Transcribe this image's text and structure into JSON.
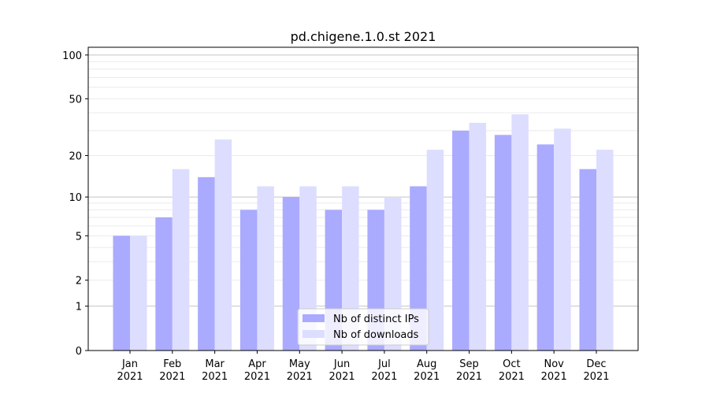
{
  "chart_data": {
    "type": "bar",
    "title": "pd.chigene.1.0.st 2021",
    "xlabel": "",
    "ylabel": "",
    "yscale": "log(1+x)",
    "ylim": [
      0,
      113
    ],
    "yticks": [
      0,
      1,
      2,
      5,
      10,
      20,
      50,
      100
    ],
    "categories": [
      "Jan\n2021",
      "Feb\n2021",
      "Mar\n2021",
      "Apr\n2021",
      "May\n2021",
      "Jun\n2021",
      "Jul\n2021",
      "Aug\n2021",
      "Sep\n2021",
      "Oct\n2021",
      "Nov\n2021",
      "Dec\n2021"
    ],
    "series": [
      {
        "name": "Nb of distinct IPs",
        "color": "#aaaaff",
        "values": [
          5,
          7,
          14,
          8,
          10,
          8,
          8,
          12,
          30,
          28,
          24,
          16
        ]
      },
      {
        "name": "Nb of downloads",
        "color": "#ddddff",
        "values": [
          5,
          16,
          26,
          12,
          12,
          12,
          10,
          22,
          34,
          39,
          31,
          22
        ]
      }
    ],
    "legend_position": "lower center",
    "grid": true
  }
}
